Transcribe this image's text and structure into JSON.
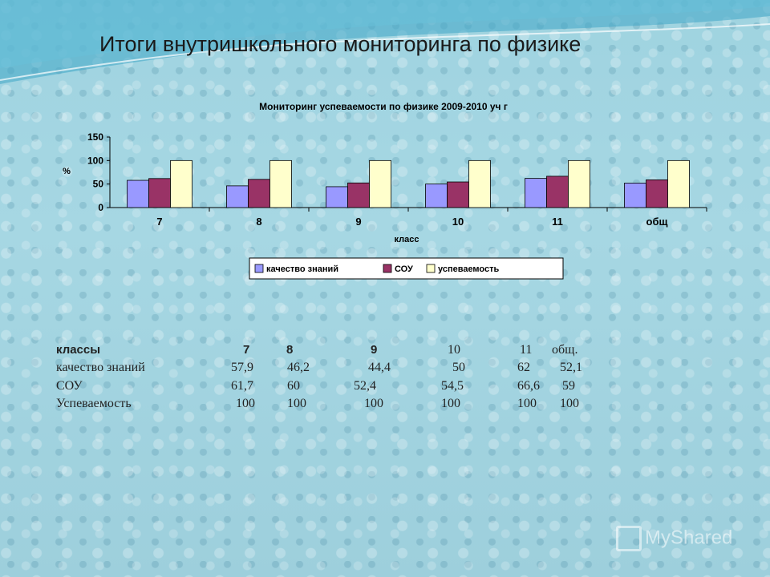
{
  "slide": {
    "title": "Итоги  внутришкольного мониторинга по физике",
    "watermark": "MyShared"
  },
  "chart_data": {
    "type": "bar",
    "title": "Мониторинг успеваемости по физике 2009-2010 уч г",
    "xlabel": "класс",
    "ylabel": "%",
    "ylim": [
      0,
      150
    ],
    "yticks": [
      0,
      50,
      100,
      150
    ],
    "categories": [
      "7",
      "8",
      "9",
      "10",
      "11",
      "общ"
    ],
    "series": [
      {
        "name": "качество знаний",
        "color": "#9999ff",
        "values": [
          57.9,
          46.2,
          44.4,
          50,
          62,
          52.1
        ]
      },
      {
        "name": "СОУ",
        "color": "#993366",
        "values": [
          61.7,
          60,
          52.4,
          54.5,
          66.6,
          59
        ]
      },
      {
        "name": "успеваемость",
        "color": "#ffffcc",
        "values": [
          100,
          100,
          100,
          100,
          100,
          100
        ]
      }
    ],
    "grid": false,
    "legend": "bottom"
  },
  "table": {
    "header_label": "классы",
    "columns": [
      "7",
      "8",
      "9",
      "10",
      "11",
      "общ."
    ],
    "rows": [
      {
        "label": "качество знаний",
        "values": [
          "57,9",
          "46,2",
          "44,4",
          "50",
          "62",
          "52,1"
        ]
      },
      {
        "label": "СОУ",
        "values": [
          "61,7",
          "60",
          "52,4",
          "54,5",
          "66,6",
          "59"
        ]
      },
      {
        "label": "Успеваемость",
        "values": [
          "100",
          "100",
          "100",
          "100",
          "100",
          "100"
        ]
      }
    ]
  }
}
